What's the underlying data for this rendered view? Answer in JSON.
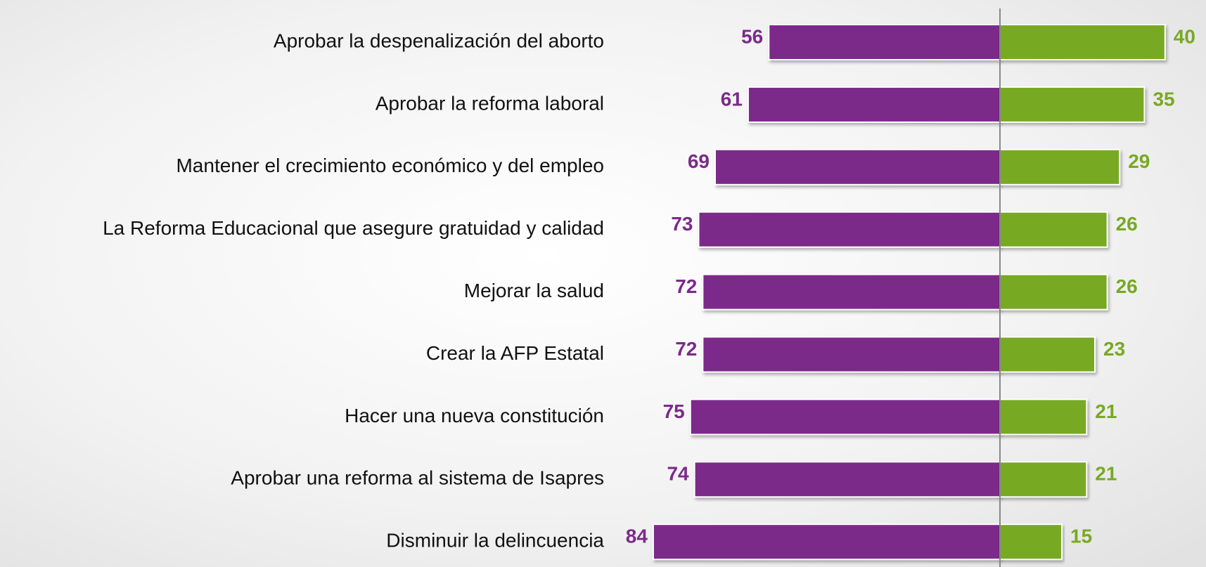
{
  "chart_data": {
    "type": "bar",
    "orientation": "horizontal",
    "diverging": true,
    "categories": [
      "Aprobar la despenalización del aborto",
      "Aprobar la reforma laboral",
      "Mantener el crecimiento económico y del empleo",
      "La Reforma Educacional que asegure gratuidad y calidad",
      "Mejorar la salud",
      "Crear la AFP Estatal",
      "Hacer una nueva constitución",
      "Aprobar una reforma al sistema de Isapres",
      "Disminuir la delincuencia"
    ],
    "series": [
      {
        "color": "#7b2a8a",
        "values": [
          56,
          61,
          69,
          73,
          72,
          72,
          75,
          74,
          84
        ]
      },
      {
        "color": "#78a922",
        "values": [
          40,
          35,
          29,
          26,
          26,
          23,
          21,
          21,
          15
        ]
      }
    ]
  }
}
